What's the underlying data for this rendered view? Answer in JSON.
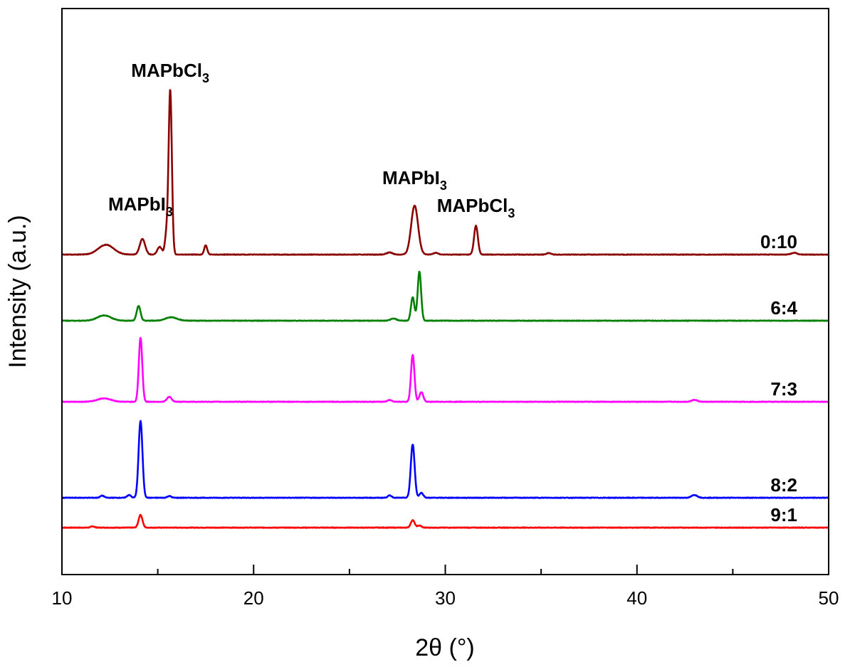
{
  "chart_data": {
    "type": "line",
    "title": "",
    "xlabel": "2θ (°)",
    "ylabel": "Intensity (a.u.)",
    "xlim": [
      10,
      50
    ],
    "x_ticks": [
      10,
      20,
      30,
      40,
      50
    ],
    "x_minor_ticks": [
      15,
      25,
      35,
      45
    ],
    "y_ticks": "none",
    "grid": false,
    "stacking": "vertically offset curves",
    "series": [
      {
        "name": "9:1",
        "color": "#ff0000",
        "baseline": 0,
        "peaks": [
          {
            "x": 11.6,
            "height": 0.6,
            "width": 0.1
          },
          {
            "x": 14.1,
            "height": 6,
            "width": 0.1
          },
          {
            "x": 28.3,
            "height": 3.5,
            "width": 0.1
          },
          {
            "x": 28.65,
            "height": 1,
            "width": 0.1
          }
        ]
      },
      {
        "name": "8:2",
        "color": "#0000ff",
        "baseline": 14,
        "peaks": [
          {
            "x": 12.1,
            "height": 1,
            "width": 0.1
          },
          {
            "x": 13.5,
            "height": 1.3,
            "width": 0.1
          },
          {
            "x": 14.1,
            "height": 36,
            "width": 0.1
          },
          {
            "x": 15.6,
            "height": 0.8,
            "width": 0.1
          },
          {
            "x": 27.1,
            "height": 1.1,
            "width": 0.1
          },
          {
            "x": 28.3,
            "height": 25,
            "width": 0.1
          },
          {
            "x": 28.75,
            "height": 2.3,
            "width": 0.1
          },
          {
            "x": 43.0,
            "height": 1.3,
            "width": 0.15
          }
        ]
      },
      {
        "name": "7:3",
        "color": "#ff00ff",
        "baseline": 59,
        "peaks": [
          {
            "x": 12.2,
            "height": 1.6,
            "width": 0.35
          },
          {
            "x": 14.1,
            "height": 30,
            "width": 0.09
          },
          {
            "x": 15.6,
            "height": 2.3,
            "width": 0.12
          },
          {
            "x": 27.1,
            "height": 0.8,
            "width": 0.12
          },
          {
            "x": 28.3,
            "height": 22,
            "width": 0.09
          },
          {
            "x": 28.75,
            "height": 4.5,
            "width": 0.1
          },
          {
            "x": 43.0,
            "height": 0.9,
            "width": 0.15
          }
        ]
      },
      {
        "name": "6:4",
        "color": "#008000",
        "baseline": 97,
        "peaks": [
          {
            "x": 12.2,
            "height": 2.5,
            "width": 0.35
          },
          {
            "x": 14.0,
            "height": 7,
            "width": 0.1
          },
          {
            "x": 15.7,
            "height": 1.6,
            "width": 0.3
          },
          {
            "x": 27.3,
            "height": 1.0,
            "width": 0.15
          },
          {
            "x": 28.3,
            "height": 11,
            "width": 0.09
          },
          {
            "x": 28.65,
            "height": 23,
            "width": 0.09
          }
        ]
      },
      {
        "name": "0:10",
        "color": "#8b0000",
        "baseline": 128,
        "peaks": [
          {
            "x": 12.3,
            "height": 4.6,
            "width": 0.4
          },
          {
            "x": 14.2,
            "height": 7.3,
            "width": 0.14
          },
          {
            "x": 15.1,
            "height": 3.6,
            "width": 0.12
          },
          {
            "x": 15.65,
            "height": 77,
            "width": 0.085
          },
          {
            "x": 15.45,
            "height": 9,
            "width": 0.08
          },
          {
            "x": 17.5,
            "height": 4.3,
            "width": 0.08
          },
          {
            "x": 27.1,
            "height": 1.0,
            "width": 0.15
          },
          {
            "x": 28.4,
            "height": 23,
            "width": 0.18
          },
          {
            "x": 29.5,
            "height": 0.9,
            "width": 0.12
          },
          {
            "x": 31.6,
            "height": 13.5,
            "width": 0.1
          },
          {
            "x": 35.4,
            "height": 0.7,
            "width": 0.12
          },
          {
            "x": 48.2,
            "height": 0.8,
            "width": 0.15
          }
        ]
      }
    ],
    "annotations": [
      {
        "base": "MAPbCl",
        "sub": "3",
        "x": 15.65
      },
      {
        "base": "MAPbI",
        "sub": "3",
        "x": 14.1
      },
      {
        "base": "MAPbI",
        "sub": "3",
        "x": 28.4
      },
      {
        "base": "MAPbCl",
        "sub": "3",
        "x": 31.6
      }
    ]
  }
}
